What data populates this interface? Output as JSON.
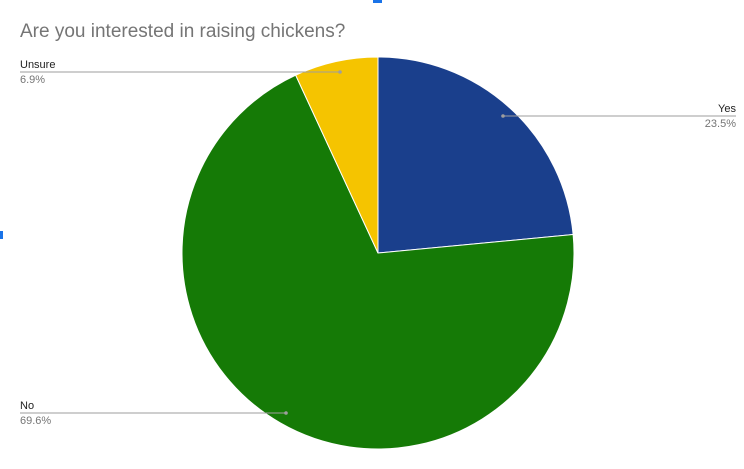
{
  "chart_data": {
    "type": "pie",
    "title": "Are you interested in raising chickens?",
    "categories": [
      "Yes",
      "No",
      "Unsure"
    ],
    "values": [
      23.5,
      69.6,
      6.9
    ],
    "value_labels": [
      "23.5%",
      "69.6%",
      "6.9%"
    ],
    "colors": [
      "#1a3f8c",
      "#157a06",
      "#f5c400"
    ],
    "legend": "none",
    "label_placement": "outside with leader lines"
  }
}
